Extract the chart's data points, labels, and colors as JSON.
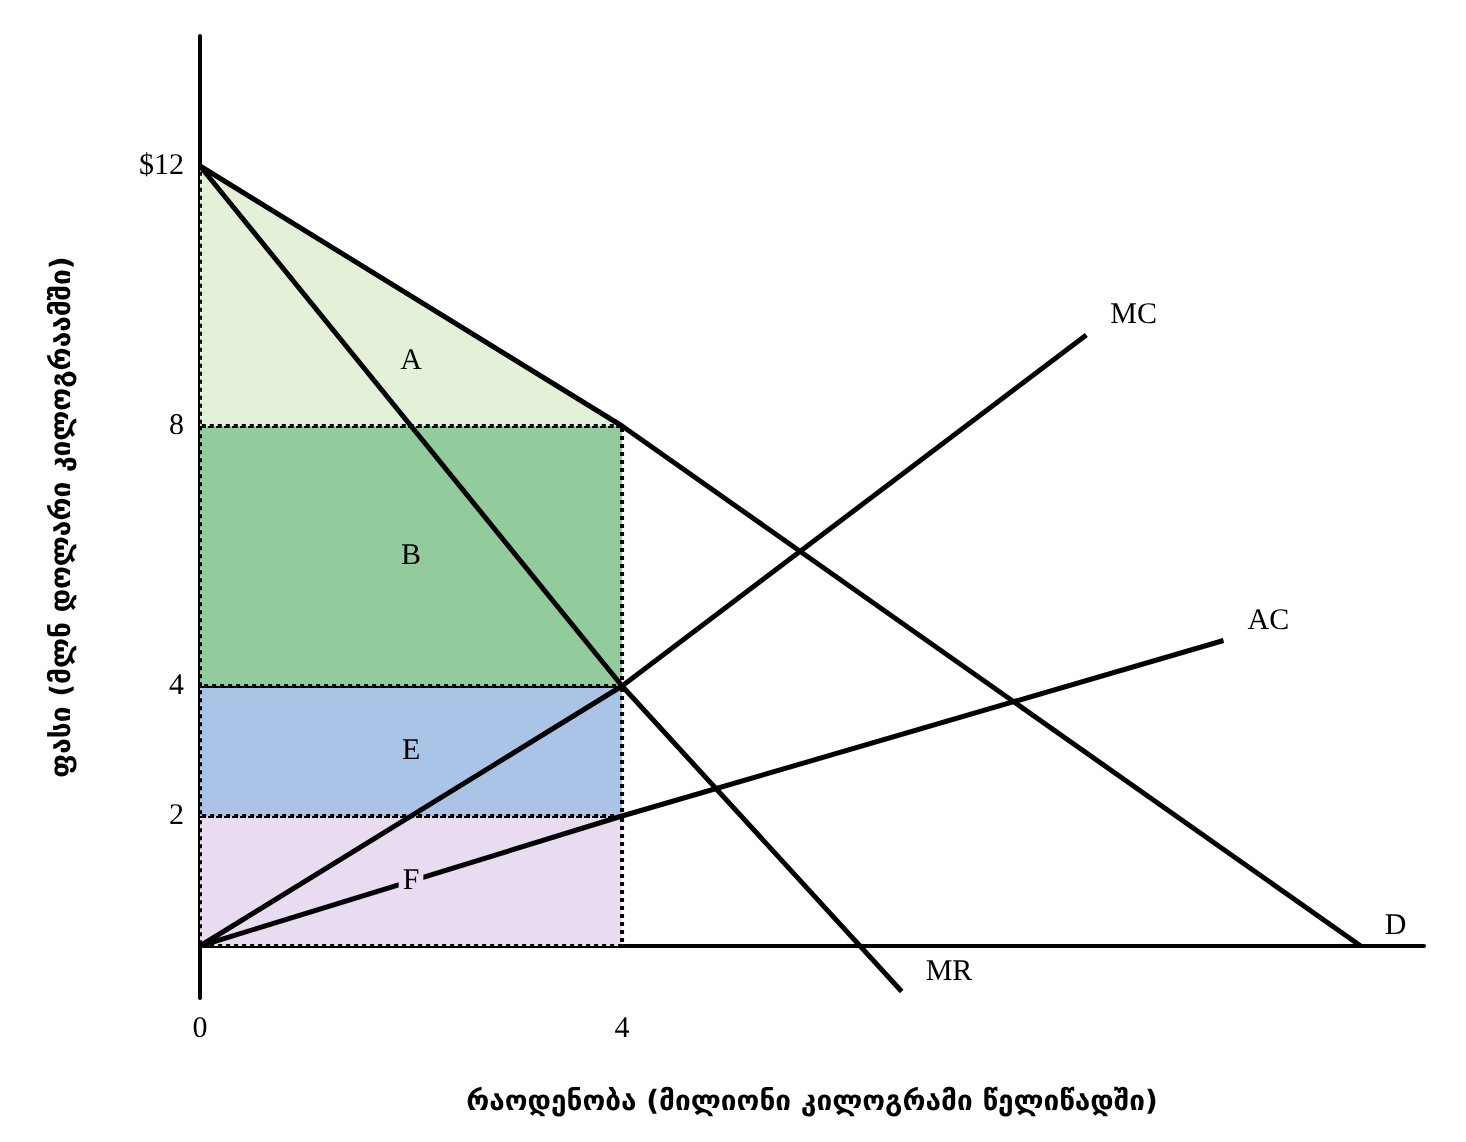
{
  "chart_data": {
    "type": "line",
    "xlabel": "რაოდენობა (მილიონი კილოგრამი წელიწადში)",
    "ylabel": "ფასი (მლნ დოლარი კილოგრაამში)",
    "xlim": [
      0,
      11.6
    ],
    "xticks": [
      0,
      4
    ],
    "ylim": [
      -0.8,
      14
    ],
    "yticks": [
      2,
      4,
      8,
      {
        "value": 12,
        "label": "$12"
      }
    ],
    "grid": false,
    "stacked": true,
    "marker": "none",
    "line_style": "solid",
    "series": [
      {
        "type": "area",
        "name": "F",
        "color": "#eadcf0",
        "x": [
          0,
          4
        ],
        "values": [
          2,
          2
        ],
        "line_style": "dotted"
      },
      {
        "type": "area",
        "name": "E",
        "color": "#a9c4e6",
        "x": [
          0,
          4
        ],
        "values": [
          2,
          2
        ],
        "line_style": "dotted"
      },
      {
        "type": "area",
        "name": "B",
        "color": "#93cc9c",
        "x": [
          0,
          4
        ],
        "values": [
          4,
          4
        ],
        "line_style": "dotted"
      },
      {
        "type": "area",
        "name": "A",
        "color": "#e3f1d9",
        "x": [
          0,
          4
        ],
        "values": [
          4,
          0
        ],
        "line_style": "dotted"
      },
      {
        "name": "D",
        "color": "#000000",
        "x": [
          0,
          4,
          11
        ],
        "values": [
          12,
          8,
          0
        ]
      },
      {
        "name": "MR",
        "color": "#000000",
        "x": [
          0,
          4,
          6.65
        ],
        "values": [
          12,
          4,
          -0.7
        ]
      },
      {
        "name": "MC",
        "color": "#000000",
        "x": [
          0,
          4,
          8.4
        ],
        "values": [
          0,
          4,
          9.4
        ]
      },
      {
        "name": "AC",
        "color": "#000000",
        "x": [
          0,
          4,
          9.7
        ],
        "values": [
          0,
          2,
          4.7
        ]
      }
    ]
  }
}
